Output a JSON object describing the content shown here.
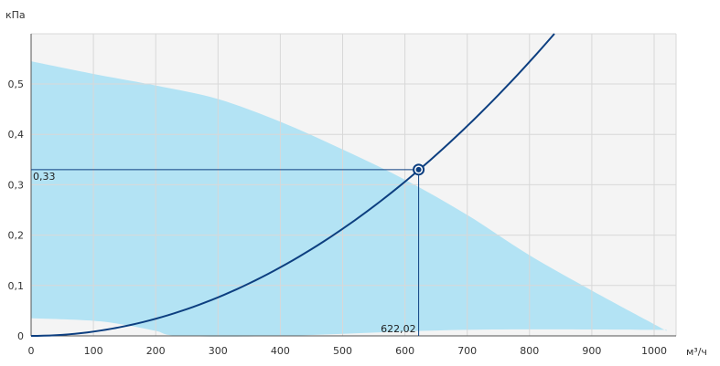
{
  "chart_data": {
    "type": "area",
    "title": "",
    "xlabel": "м³/ч",
    "ylabel": "кПа",
    "xlim": [
      0,
      1030
    ],
    "ylim": [
      0,
      0.6
    ],
    "x_ticks": [
      0,
      100,
      200,
      300,
      400,
      500,
      600,
      700,
      800,
      900,
      1000
    ],
    "y_ticks": [
      0,
      0.1,
      0.2,
      0.3,
      0.4,
      0.5
    ],
    "x_tick_labels": [
      "0",
      "100",
      "200",
      "300",
      "400",
      "500",
      "600",
      "700",
      "800",
      "900",
      "1000"
    ],
    "y_tick_labels": [
      "0",
      "0,1",
      "0,2",
      "0,3",
      "0,4",
      "0,5"
    ],
    "grid": true,
    "operating_range": {
      "upper": {
        "x": [
          0,
          100,
          200,
          300,
          400,
          500,
          600,
          700,
          800,
          900,
          1020
        ],
        "y": [
          0.545,
          0.52,
          0.497,
          0.47,
          0.425,
          0.37,
          0.31,
          0.24,
          0.16,
          0.09,
          0.01
        ]
      },
      "lower": {
        "x": [
          0,
          100,
          150,
          200,
          240,
          400,
          700,
          1020
        ],
        "y": [
          0.035,
          0.03,
          0.022,
          0.01,
          0.0,
          0.0,
          0.012,
          0.012
        ]
      },
      "color": "#b3e3f4"
    },
    "system_curve": {
      "coefficient": 8.5e-07,
      "x_range": [
        0,
        840
      ],
      "color": "#0d3f80"
    },
    "operating_point": {
      "x": 622.02,
      "y": 0.33,
      "x_label": "622,02",
      "y_label": "0,33"
    },
    "colors": {
      "plot_bg": "#f4f4f4",
      "grid": "#d8d8d8",
      "axis": "#555555",
      "curve": "#0d3f80",
      "area": "#b3e3f4"
    }
  }
}
